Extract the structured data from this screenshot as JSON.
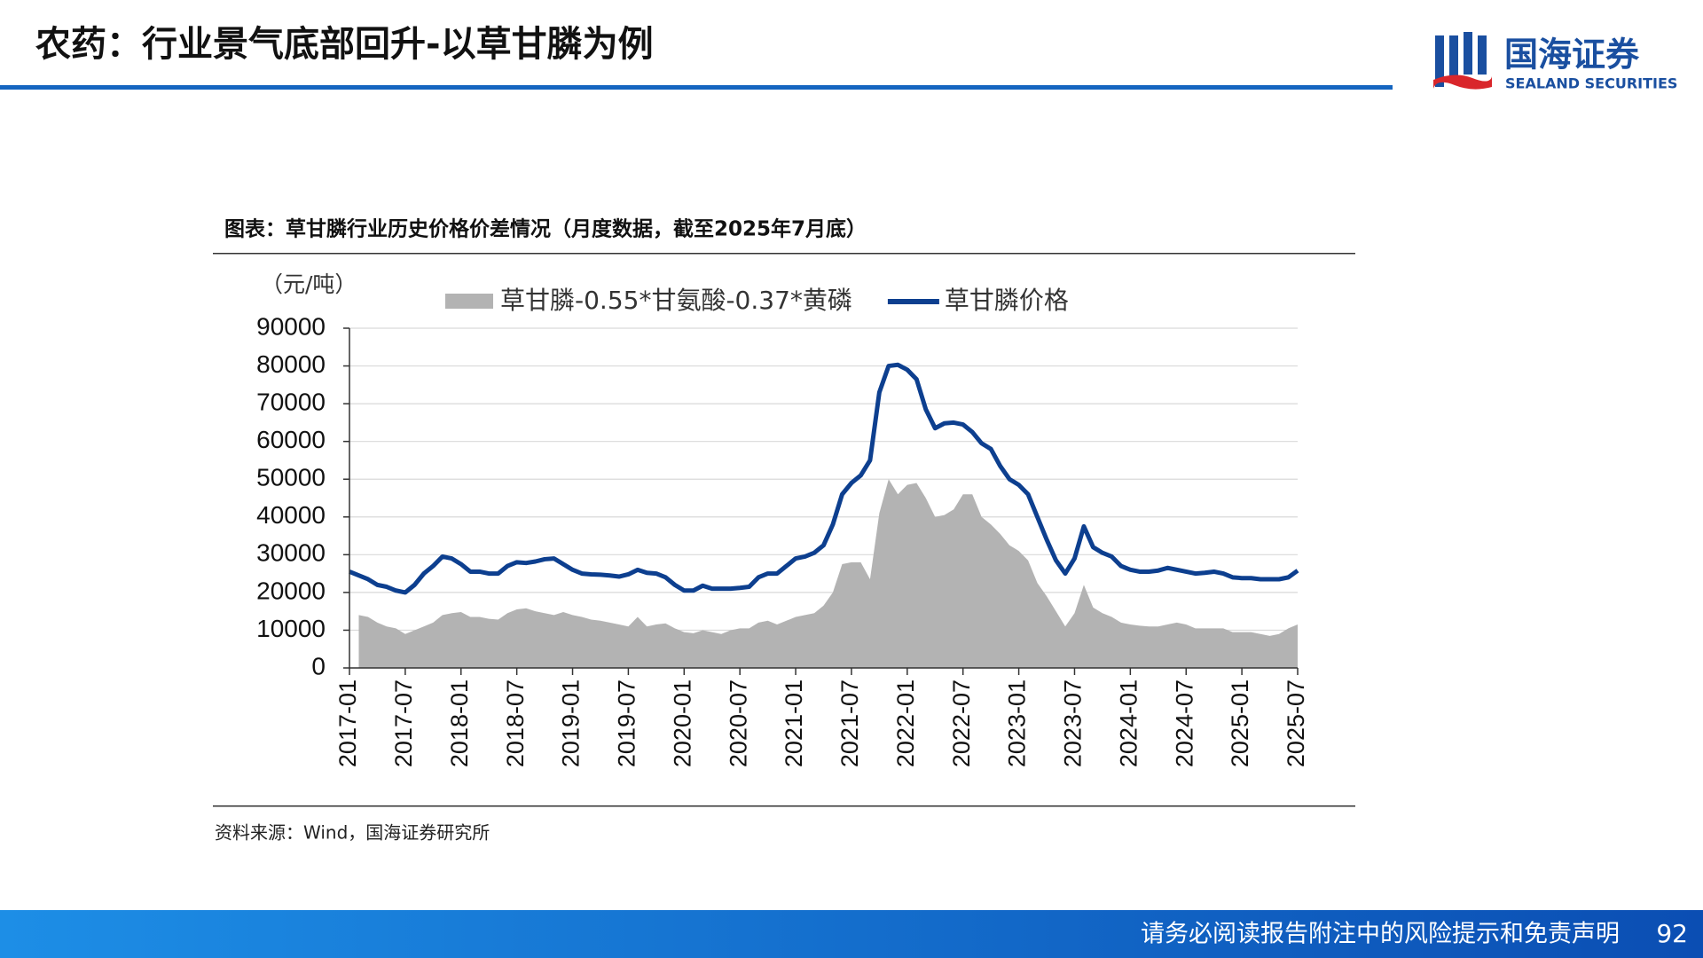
{
  "header": {
    "title": "农药：行业景气底部回升-以草甘膦为例",
    "logo_cn": "国海证券",
    "logo_en": "SEALAND SECURITIES"
  },
  "footer": {
    "disclaimer": "请务必阅读报告附注中的风险提示和免责声明",
    "page_number": 92
  },
  "chart_data": {
    "type": "line",
    "title": "图表：草甘膦行业历史价格价差情况（月度数据，截至2025年7月底）",
    "y_label": "（元/吨）",
    "source": "资料来源：Wind，国海证券研究所",
    "categories": [
      "2017-01",
      null,
      null,
      null,
      null,
      null,
      "2017-07",
      null,
      null,
      null,
      null,
      null,
      "2018-01",
      null,
      null,
      null,
      null,
      null,
      "2018-07",
      null,
      null,
      null,
      null,
      null,
      "2019-01",
      null,
      null,
      null,
      null,
      null,
      "2019-07",
      null,
      null,
      null,
      null,
      null,
      "2020-01",
      null,
      null,
      null,
      null,
      null,
      "2020-07",
      null,
      null,
      null,
      null,
      null,
      "2021-01",
      null,
      null,
      null,
      null,
      null,
      "2021-07",
      null,
      null,
      null,
      null,
      null,
      "2022-01",
      null,
      null,
      null,
      null,
      null,
      "2022-07",
      null,
      null,
      null,
      null,
      null,
      "2023-01",
      null,
      null,
      null,
      null,
      null,
      "2023-07",
      null,
      null,
      null,
      null,
      null,
      "2024-01",
      null,
      null,
      null,
      null,
      null,
      "2024-07",
      null,
      null,
      null,
      null,
      null,
      "2025-01",
      null,
      null,
      null,
      null,
      null,
      "2025-07"
    ],
    "series": [
      {
        "name": "草甘膦-0.55*甘氨酸-0.37*黄磷",
        "type": "area",
        "color": "#b3b3b3",
        "values": [
          null,
          14000,
          13500,
          12000,
          11000,
          10500,
          9000,
          10000,
          11000,
          12000,
          14000,
          14500,
          14800,
          13500,
          13500,
          13000,
          12800,
          14500,
          15500,
          15800,
          15000,
          14500,
          14000,
          14800,
          14000,
          13500,
          12800,
          12500,
          12000,
          11500,
          11000,
          13500,
          11000,
          11500,
          11800,
          10500,
          9500,
          9200,
          10000,
          9500,
          9000,
          10000,
          10500,
          10500,
          12000,
          12500,
          11500,
          12500,
          13500,
          14000,
          14500,
          16500,
          20000,
          27500,
          28000,
          28000,
          23500,
          41000,
          50000,
          46000,
          48500,
          49000,
          45000,
          40000,
          40500,
          42000,
          46000,
          46000,
          40000,
          38000,
          35500,
          32500,
          31000,
          28500,
          22500,
          19000,
          15000,
          11000,
          14500,
          22000,
          16000,
          14500,
          13500,
          12000,
          11500,
          11200,
          11000,
          11000,
          11500,
          12000,
          11500,
          10500,
          10500,
          10500,
          10500,
          9500,
          9500,
          9500,
          9000,
          8500,
          9000,
          10500,
          11500
        ]
      },
      {
        "name": "草甘膦价格",
        "type": "line",
        "color": "#0d3f8f",
        "values": [
          25500,
          24500,
          23500,
          22000,
          21500,
          20500,
          20000,
          22000,
          25000,
          27000,
          29500,
          29000,
          27500,
          25500,
          25500,
          25000,
          25000,
          27000,
          28000,
          27800,
          28200,
          28800,
          29000,
          27500,
          26000,
          25000,
          24800,
          24700,
          24500,
          24200,
          24800,
          26000,
          25200,
          25000,
          24000,
          22000,
          20500,
          20500,
          21800,
          21000,
          21000,
          21000,
          21200,
          21500,
          24000,
          25000,
          25000,
          27000,
          29000,
          29500,
          30500,
          32500,
          38000,
          46000,
          49000,
          51000,
          55000,
          73000,
          80000,
          80300,
          79000,
          76500,
          68500,
          63500,
          64800,
          65000,
          64500,
          62500,
          59500,
          58000,
          53500,
          50000,
          48500,
          46000,
          40000,
          34000,
          28500,
          25000,
          29000,
          37500,
          32000,
          30500,
          29500,
          27000,
          26000,
          25500,
          25500,
          25800,
          26500,
          26000,
          25500,
          25000,
          25200,
          25500,
          25000,
          24000,
          23800,
          23800,
          23500,
          23500,
          23500,
          24000,
          25800
        ]
      }
    ],
    "ylim": [
      0,
      90000
    ],
    "yticks": [
      0,
      10000,
      20000,
      30000,
      40000,
      50000,
      60000,
      70000,
      80000,
      90000
    ],
    "grid": true
  }
}
